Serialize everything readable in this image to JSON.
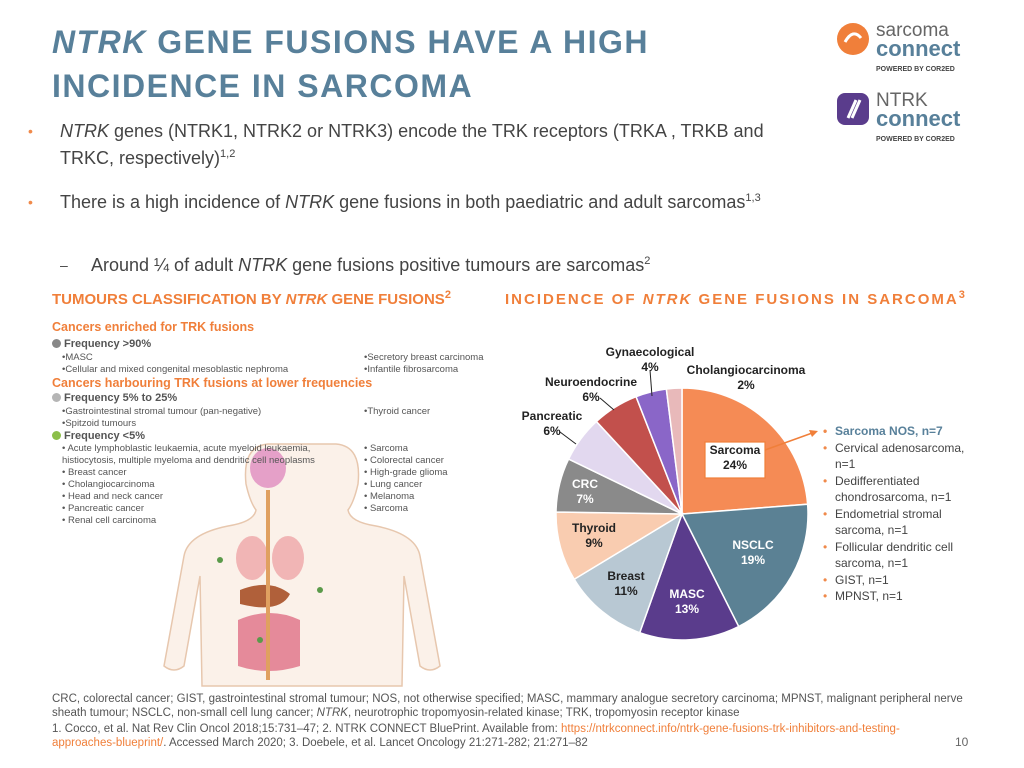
{
  "logos": {
    "sarcoma": [
      "sarcoma",
      "connect",
      "POWERED BY COR2ED"
    ],
    "ntrk": [
      "NTRK",
      "connect",
      "POWERED BY COR2ED"
    ]
  },
  "header": {
    "title": [
      "NTRK",
      " GENE FUSIONS HAVE A HIGH INCIDENCE IN SARCOMA"
    ]
  },
  "bullets": [
    [
      "",
      "NTRK",
      " genes (NTRK1, NTRK2 or NTRK3) encode the TRK receptors (TRKA , TRKB and TRKC, respectively)",
      "1,2"
    ],
    [
      "There is a high incidence of ",
      "NTRK",
      " gene fusions in both paediatric and adult sarcomas",
      "1,3"
    ],
    [
      "Around ¼ of adult ",
      "NTRK",
      " gene fusions positive tumours are sarcomas",
      "2"
    ]
  ],
  "classification": {
    "title": [
      "TUMOURS CLASSIFICATION BY ",
      "NTRK",
      " GENE FUSIONS",
      "2"
    ],
    "enriched": "Cancers enriched for TRK fusions",
    "freq_high": "Frequency >90%",
    "high_col1": [
      "•MASC",
      "•Cellular and mixed congenital mesoblastic nephroma"
    ],
    "high_col2": [
      "•Secretory breast carcinoma",
      "•Infantile fibrosarcoma"
    ],
    "lower": "Cancers harbouring TRK fusions at lower frequencies",
    "freq_mid": "Frequency 5% to 25%",
    "mid_col1": [
      "•Gastrointestinal stromal tumour (pan-negative)",
      "•Spitzoid tumours"
    ],
    "mid_col2": [
      "•Thyroid cancer"
    ],
    "freq_low": "Frequency <5%",
    "low_col1": [
      "• Acute lymphoblastic leukaemia, acute myeloid leukaemia, histiocytosis, multiple myeloma and dendritic cell neoplasms",
      "• Breast cancer",
      "• Cholangiocarcinoma",
      "• Head and neck cancer",
      "• Pancreatic cancer",
      "• Renal cell carcinoma"
    ],
    "low_col2": [
      "• Sarcoma",
      "• Colorectal cancer",
      "• High-grade glioma",
      "• Lung cancer",
      "• Melanoma",
      "•  Sarcoma"
    ]
  },
  "chart_data": {
    "type": "pie",
    "title": [
      "INCIDENCE OF ",
      "NTRK",
      " GENE FUSIONS IN SARCOMA",
      "3"
    ],
    "categories": [
      "Sarcoma",
      "NSCLC",
      "MASC",
      "Breast",
      "Thyroid",
      "CRC",
      "Pancreatic",
      "Neuroendocrine",
      "Gynaecological",
      "Cholangiocarcinoma"
    ],
    "values": [
      24,
      19,
      13,
      11,
      9,
      7,
      6,
      6,
      4,
      2
    ],
    "value_labels": [
      "24%",
      "19%",
      "13%",
      "11%",
      "9%",
      "7%",
      "6%",
      "6%",
      "4%",
      "2%"
    ],
    "colors": [
      "#f58b55",
      "#5b8194",
      "#5a3c8c",
      "#b8c8d3",
      "#f9ccb0",
      "#8a8a8a",
      "#e2d8ef",
      "#c2504c",
      "#8a66c8",
      "#e8b9ba"
    ],
    "annotation": [
      "Sarcoma NOS, n=7",
      "Cervical adenosarcoma, n=1",
      "Dedifferentiated chondrosarcoma, n=1",
      "Endometrial stromal sarcoma, n=1",
      "Follicular dendritic cell sarcoma, n=1",
      "GIST, n=1",
      "MPNST, n=1"
    ]
  },
  "footer": {
    "abbreviations": [
      "CRC, colorectal cancer; GIST, gastrointestinal stromal tumour; NOS, not otherwise specified; MASC, mammary analogue secretory carcinoma; MPNST, malignant peripheral nerve sheath tumour; NSCLC, non-small cell lung cancer; ",
      "NTRK",
      ", neurotrophic tropomyosin-related kinase; TRK, tropomyosin receptor kinase"
    ],
    "references": [
      "1. Cocco, et al. Nat Rev Clin Oncol 2018;15:731–47;  2. NTRK CONNECT BluePrint. Available from: ",
      "https://ntrkconnect.info/ntrk-gene-fusions-trk-inhibitors-and-testing-approaches-blueprint/",
      ". Accessed March 2020; 3. Doebele, et al. Lancet Oncology 21:271-282; 21:271–82"
    ],
    "page": "10"
  }
}
